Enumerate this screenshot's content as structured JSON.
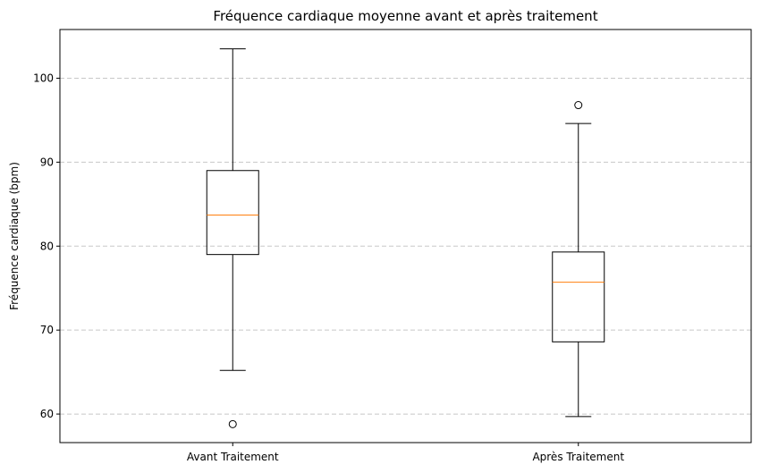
{
  "chart_data": {
    "type": "box",
    "title": "Fréquence cardiaque moyenne avant et après traitement",
    "xlabel": "",
    "ylabel": "Fréquence cardiaque (bpm)",
    "ylim": [
      56.6,
      105.8
    ],
    "yticks": [
      60,
      70,
      80,
      90,
      100
    ],
    "grid": "y-dashed",
    "categories": [
      "Avant Traitement",
      "Après Traitement"
    ],
    "boxes": [
      {
        "whisker_low": 65.2,
        "q1": 79.0,
        "median": 83.7,
        "q3": 89.0,
        "whisker_high": 103.5,
        "outliers": [
          58.8
        ]
      },
      {
        "whisker_low": 59.7,
        "q1": 68.6,
        "median": 75.7,
        "q3": 79.3,
        "whisker_high": 94.6,
        "outliers": [
          96.8
        ]
      }
    ],
    "colors": {
      "box": "#000000",
      "median": "#ff7f0e",
      "grid": "#c8c8c8"
    }
  }
}
